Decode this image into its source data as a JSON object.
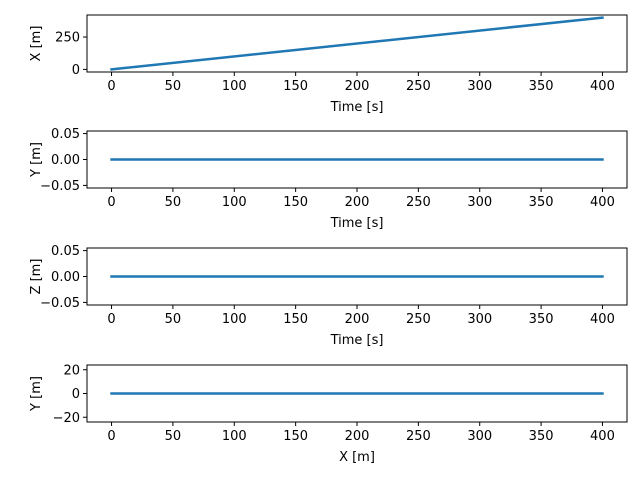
{
  "chart_data": [
    {
      "type": "line",
      "xlabel": "Time [s]",
      "ylabel": "X [m]",
      "xlim": [
        -20,
        420
      ],
      "ylim": [
        -20,
        420
      ],
      "xticks": [
        0,
        50,
        100,
        150,
        200,
        250,
        300,
        350,
        400
      ],
      "xtick_labels": [
        "0",
        "50",
        "100",
        "150",
        "200",
        "250",
        "300",
        "350",
        "400"
      ],
      "yticks": [
        0,
        250
      ],
      "ytick_labels": [
        "0",
        "250"
      ],
      "series": [
        {
          "x": [
            0,
            400
          ],
          "y": [
            0,
            400
          ]
        }
      ],
      "grid": false
    },
    {
      "type": "line",
      "xlabel": "Time [s]",
      "ylabel": "Y [m]",
      "xlim": [
        -20,
        420
      ],
      "ylim": [
        -0.055,
        0.055
      ],
      "xticks": [
        0,
        50,
        100,
        150,
        200,
        250,
        300,
        350,
        400
      ],
      "xtick_labels": [
        "0",
        "50",
        "100",
        "150",
        "200",
        "250",
        "300",
        "350",
        "400"
      ],
      "yticks": [
        -0.05,
        0,
        0.05
      ],
      "ytick_labels": [
        "−0.05",
        "0.00",
        "0.05"
      ],
      "series": [
        {
          "x": [
            0,
            400
          ],
          "y": [
            0,
            0
          ]
        }
      ],
      "grid": false
    },
    {
      "type": "line",
      "xlabel": "Time [s]",
      "ylabel": "Z [m]",
      "xlim": [
        -20,
        420
      ],
      "ylim": [
        -0.055,
        0.055
      ],
      "xticks": [
        0,
        50,
        100,
        150,
        200,
        250,
        300,
        350,
        400
      ],
      "xtick_labels": [
        "0",
        "50",
        "100",
        "150",
        "200",
        "250",
        "300",
        "350",
        "400"
      ],
      "yticks": [
        -0.05,
        0,
        0.05
      ],
      "ytick_labels": [
        "−0.05",
        "0.00",
        "0.05"
      ],
      "series": [
        {
          "x": [
            0,
            400
          ],
          "y": [
            0,
            0
          ]
        }
      ],
      "grid": false
    },
    {
      "type": "line",
      "xlabel": "X [m]",
      "ylabel": "Y [m]",
      "xlim": [
        -20,
        420
      ],
      "ylim": [
        -24,
        24
      ],
      "xticks": [
        0,
        50,
        100,
        150,
        200,
        250,
        300,
        350,
        400
      ],
      "xtick_labels": [
        "0",
        "50",
        "100",
        "150",
        "200",
        "250",
        "300",
        "350",
        "400"
      ],
      "yticks": [
        -20,
        0,
        20
      ],
      "ytick_labels": [
        "−20",
        "0",
        "20"
      ],
      "series": [
        {
          "x": [
            0,
            400
          ],
          "y": [
            0,
            0
          ]
        }
      ],
      "grid": false
    }
  ],
  "colors": {
    "line": "#1f77b4",
    "axes": "#000000"
  }
}
